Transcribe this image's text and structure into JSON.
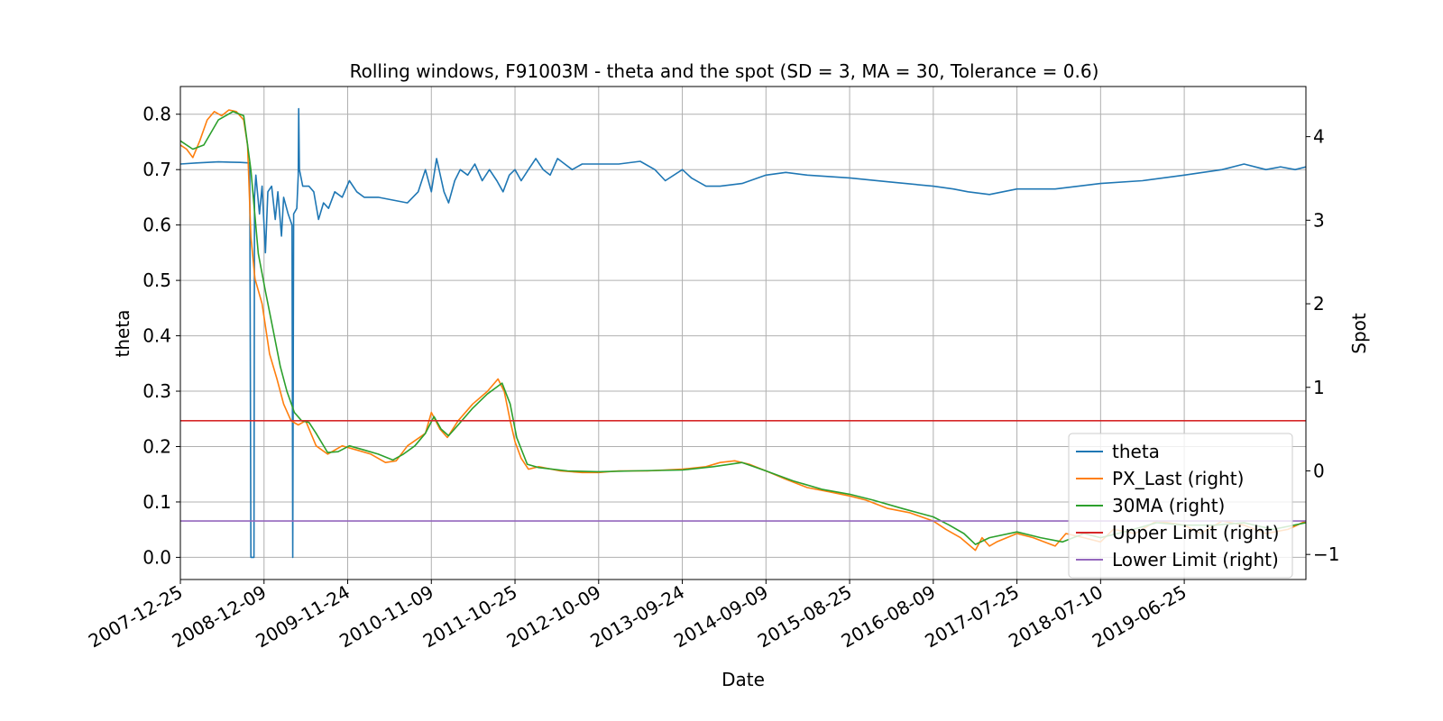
{
  "chart_data": {
    "type": "line",
    "title": "Rolling windows, F91003M - theta and the spot (SD = 3, MA = 30, Tolerance  = 0.6)",
    "xlabel": "Date",
    "ylabel": "theta",
    "y2label": "Spot",
    "xlim": [
      "2007-12-25",
      "2020-11-15"
    ],
    "ylim": [
      -0.04,
      0.85
    ],
    "y2lim": [
      -1.3,
      4.6
    ],
    "x_ticks": [
      "2007-12-25",
      "2008-12-09",
      "2009-11-24",
      "2010-11-09",
      "2011-10-25",
      "2012-10-09",
      "2013-09-24",
      "2014-09-09",
      "2015-08-25",
      "2016-08-09",
      "2017-07-25",
      "2018-07-10",
      "2019-06-25"
    ],
    "y_ticks": [
      "0.0",
      "0.1",
      "0.2",
      "0.3",
      "0.4",
      "0.5",
      "0.6",
      "0.7",
      "0.8"
    ],
    "y2_ticks": [
      "−1",
      "0",
      "1",
      "2",
      "3",
      "4"
    ],
    "y_tick_values": [
      0,
      0.1,
      0.2,
      0.3,
      0.4,
      0.5,
      0.6,
      0.7,
      0.8
    ],
    "y2_tick_values": [
      -1,
      0,
      1,
      2,
      3,
      4
    ],
    "grid": true,
    "legend_position": "lower-right",
    "series": [
      {
        "name": "theta",
        "axis": "left",
        "color": "#1f77b4",
        "points": [
          [
            "2007-12-25",
            0.71
          ],
          [
            "2008-03-01",
            0.712
          ],
          [
            "2008-06-01",
            0.714
          ],
          [
            "2008-09-01",
            0.713
          ],
          [
            "2008-10-10",
            0.712
          ],
          [
            "2008-10-15",
            0.0
          ],
          [
            "2008-10-28",
            0.0
          ],
          [
            "2008-10-30",
            0.65
          ],
          [
            "2008-11-05",
            0.69
          ],
          [
            "2008-11-20",
            0.62
          ],
          [
            "2008-12-01",
            0.67
          ],
          [
            "2008-12-15",
            0.55
          ],
          [
            "2008-12-25",
            0.66
          ],
          [
            "2009-01-10",
            0.67
          ],
          [
            "2009-01-25",
            0.61
          ],
          [
            "2009-02-05",
            0.66
          ],
          [
            "2009-02-20",
            0.58
          ],
          [
            "2009-03-01",
            0.65
          ],
          [
            "2009-03-20",
            0.62
          ],
          [
            "2009-04-05",
            0.6
          ],
          [
            "2009-04-08",
            0.0
          ],
          [
            "2009-04-12",
            0.62
          ],
          [
            "2009-04-25",
            0.63
          ],
          [
            "2009-05-01",
            0.69
          ],
          [
            "2009-05-03",
            0.81
          ],
          [
            "2009-05-06",
            0.7
          ],
          [
            "2009-05-20",
            0.67
          ],
          [
            "2009-06-15",
            0.67
          ],
          [
            "2009-07-05",
            0.66
          ],
          [
            "2009-07-25",
            0.61
          ],
          [
            "2009-08-15",
            0.64
          ],
          [
            "2009-09-05",
            0.63
          ],
          [
            "2009-10-01",
            0.66
          ],
          [
            "2009-11-01",
            0.65
          ],
          [
            "2009-12-01",
            0.68
          ],
          [
            "2010-01-01",
            0.66
          ],
          [
            "2010-02-01",
            0.65
          ],
          [
            "2010-04-01",
            0.65
          ],
          [
            "2010-06-01",
            0.645
          ],
          [
            "2010-08-01",
            0.64
          ],
          [
            "2010-09-15",
            0.66
          ],
          [
            "2010-10-15",
            0.7
          ],
          [
            "2010-11-09",
            0.66
          ],
          [
            "2010-12-01",
            0.72
          ],
          [
            "2011-01-01",
            0.66
          ],
          [
            "2011-01-20",
            0.64
          ],
          [
            "2011-02-15",
            0.68
          ],
          [
            "2011-03-10",
            0.7
          ],
          [
            "2011-04-10",
            0.69
          ],
          [
            "2011-05-10",
            0.71
          ],
          [
            "2011-06-10",
            0.68
          ],
          [
            "2011-07-10",
            0.7
          ],
          [
            "2011-08-10",
            0.68
          ],
          [
            "2011-09-05",
            0.66
          ],
          [
            "2011-10-01",
            0.69
          ],
          [
            "2011-10-25",
            0.7
          ],
          [
            "2011-11-20",
            0.68
          ],
          [
            "2011-12-20",
            0.7
          ],
          [
            "2012-01-20",
            0.72
          ],
          [
            "2012-02-20",
            0.7
          ],
          [
            "2012-03-20",
            0.69
          ],
          [
            "2012-04-20",
            0.72
          ],
          [
            "2012-05-20",
            0.71
          ],
          [
            "2012-06-20",
            0.7
          ],
          [
            "2012-08-01",
            0.71
          ],
          [
            "2012-10-09",
            0.71
          ],
          [
            "2013-01-01",
            0.71
          ],
          [
            "2013-04-01",
            0.715
          ],
          [
            "2013-06-01",
            0.7
          ],
          [
            "2013-07-15",
            0.68
          ],
          [
            "2013-09-24",
            0.7
          ],
          [
            "2013-11-01",
            0.685
          ],
          [
            "2014-01-01",
            0.67
          ],
          [
            "2014-03-01",
            0.67
          ],
          [
            "2014-06-01",
            0.675
          ],
          [
            "2014-09-09",
            0.69
          ],
          [
            "2014-12-01",
            0.695
          ],
          [
            "2015-03-01",
            0.69
          ],
          [
            "2015-08-25",
            0.685
          ],
          [
            "2016-02-01",
            0.678
          ],
          [
            "2016-08-09",
            0.67
          ],
          [
            "2016-11-01",
            0.665
          ],
          [
            "2017-01-01",
            0.66
          ],
          [
            "2017-04-01",
            0.655
          ],
          [
            "2017-07-25",
            0.665
          ],
          [
            "2018-01-01",
            0.665
          ],
          [
            "2018-07-10",
            0.675
          ],
          [
            "2019-01-01",
            0.68
          ],
          [
            "2019-06-25",
            0.69
          ],
          [
            "2019-12-01",
            0.7
          ],
          [
            "2020-03-01",
            0.71
          ],
          [
            "2020-06-01",
            0.7
          ],
          [
            "2020-08-01",
            0.705
          ],
          [
            "2020-10-01",
            0.7
          ],
          [
            "2020-11-15",
            0.705
          ]
        ]
      },
      {
        "name": "PX_Last (right)",
        "axis": "right",
        "color": "#ff7f0e",
        "points": [
          [
            "2007-12-25",
            3.9
          ],
          [
            "2008-01-20",
            3.85
          ],
          [
            "2008-02-15",
            3.75
          ],
          [
            "2008-03-15",
            3.95
          ],
          [
            "2008-04-15",
            4.2
          ],
          [
            "2008-05-15",
            4.3
          ],
          [
            "2008-06-15",
            4.25
          ],
          [
            "2008-07-15",
            4.32
          ],
          [
            "2008-08-15",
            4.3
          ],
          [
            "2008-09-15",
            4.2
          ],
          [
            "2008-10-01",
            3.9
          ],
          [
            "2008-10-15",
            2.8
          ],
          [
            "2008-11-01",
            2.3
          ],
          [
            "2008-12-01",
            2.0
          ],
          [
            "2009-01-01",
            1.4
          ],
          [
            "2009-02-01",
            1.1
          ],
          [
            "2009-03-01",
            0.8
          ],
          [
            "2009-04-01",
            0.6
          ],
          [
            "2009-05-01",
            0.55
          ],
          [
            "2009-06-01",
            0.6
          ],
          [
            "2009-07-15",
            0.3
          ],
          [
            "2009-09-01",
            0.2
          ],
          [
            "2009-11-01",
            0.3
          ],
          [
            "2010-01-01",
            0.25
          ],
          [
            "2010-03-01",
            0.2
          ],
          [
            "2010-05-01",
            0.1
          ],
          [
            "2010-06-15",
            0.12
          ],
          [
            "2010-08-01",
            0.3
          ],
          [
            "2010-10-15",
            0.45
          ],
          [
            "2010-11-09",
            0.7
          ],
          [
            "2010-12-15",
            0.5
          ],
          [
            "2011-01-15",
            0.4
          ],
          [
            "2011-03-01",
            0.6
          ],
          [
            "2011-05-01",
            0.8
          ],
          [
            "2011-07-01",
            0.95
          ],
          [
            "2011-08-15",
            1.1
          ],
          [
            "2011-09-10",
            0.95
          ],
          [
            "2011-10-05",
            0.6
          ],
          [
            "2011-10-25",
            0.35
          ],
          [
            "2011-11-20",
            0.15
          ],
          [
            "2011-12-20",
            0.02
          ],
          [
            "2012-02-01",
            0.05
          ],
          [
            "2012-05-01",
            0.0
          ],
          [
            "2012-08-01",
            -0.02
          ],
          [
            "2012-10-09",
            -0.02
          ],
          [
            "2013-01-01",
            0.0
          ],
          [
            "2013-05-01",
            0.0
          ],
          [
            "2013-09-24",
            0.02
          ],
          [
            "2014-01-01",
            0.05
          ],
          [
            "2014-03-01",
            0.1
          ],
          [
            "2014-05-01",
            0.12
          ],
          [
            "2014-07-01",
            0.08
          ],
          [
            "2014-09-09",
            0.0
          ],
          [
            "2014-12-01",
            -0.1
          ],
          [
            "2015-03-01",
            -0.2
          ],
          [
            "2015-06-01",
            -0.25
          ],
          [
            "2015-08-25",
            -0.3
          ],
          [
            "2015-11-01",
            -0.35
          ],
          [
            "2016-02-01",
            -0.45
          ],
          [
            "2016-05-01",
            -0.5
          ],
          [
            "2016-08-09",
            -0.6
          ],
          [
            "2016-10-01",
            -0.7
          ],
          [
            "2016-12-01",
            -0.8
          ],
          [
            "2017-02-01",
            -0.95
          ],
          [
            "2017-03-01",
            -0.8
          ],
          [
            "2017-04-01",
            -0.9
          ],
          [
            "2017-05-01",
            -0.85
          ],
          [
            "2017-07-25",
            -0.75
          ],
          [
            "2017-10-01",
            -0.8
          ],
          [
            "2018-01-01",
            -0.9
          ],
          [
            "2018-02-15",
            -0.75
          ],
          [
            "2018-05-01",
            -0.8
          ],
          [
            "2018-07-10",
            -0.85
          ],
          [
            "2018-09-01",
            -0.7
          ],
          [
            "2018-12-01",
            -0.75
          ],
          [
            "2019-03-01",
            -0.6
          ],
          [
            "2019-06-25",
            -0.65
          ],
          [
            "2019-09-01",
            -0.75
          ],
          [
            "2019-12-01",
            -0.6
          ],
          [
            "2020-03-01",
            -0.65
          ],
          [
            "2020-06-01",
            -0.75
          ],
          [
            "2020-09-01",
            -0.7
          ],
          [
            "2020-11-15",
            -0.6
          ]
        ]
      },
      {
        "name": "30MA (right)",
        "axis": "right",
        "color": "#2ca02c",
        "points": [
          [
            "2007-12-25",
            3.95
          ],
          [
            "2008-02-15",
            3.85
          ],
          [
            "2008-04-01",
            3.9
          ],
          [
            "2008-06-01",
            4.2
          ],
          [
            "2008-08-01",
            4.3
          ],
          [
            "2008-09-15",
            4.25
          ],
          [
            "2008-10-15",
            3.6
          ],
          [
            "2008-11-15",
            2.6
          ],
          [
            "2008-12-15",
            2.15
          ],
          [
            "2009-01-15",
            1.7
          ],
          [
            "2009-02-15",
            1.25
          ],
          [
            "2009-03-15",
            0.95
          ],
          [
            "2009-04-15",
            0.7
          ],
          [
            "2009-05-15",
            0.6
          ],
          [
            "2009-06-15",
            0.58
          ],
          [
            "2009-07-15",
            0.45
          ],
          [
            "2009-09-01",
            0.22
          ],
          [
            "2009-10-15",
            0.23
          ],
          [
            "2009-12-01",
            0.3
          ],
          [
            "2010-02-01",
            0.25
          ],
          [
            "2010-04-01",
            0.2
          ],
          [
            "2010-06-01",
            0.13
          ],
          [
            "2010-07-15",
            0.2
          ],
          [
            "2010-09-01",
            0.3
          ],
          [
            "2010-10-15",
            0.45
          ],
          [
            "2010-11-20",
            0.65
          ],
          [
            "2010-12-20",
            0.5
          ],
          [
            "2011-01-20",
            0.42
          ],
          [
            "2011-03-01",
            0.55
          ],
          [
            "2011-05-01",
            0.75
          ],
          [
            "2011-07-01",
            0.92
          ],
          [
            "2011-09-01",
            1.05
          ],
          [
            "2011-10-05",
            0.8
          ],
          [
            "2011-11-01",
            0.4
          ],
          [
            "2011-12-15",
            0.08
          ],
          [
            "2012-02-01",
            0.04
          ],
          [
            "2012-06-01",
            0.0
          ],
          [
            "2012-10-09",
            -0.01
          ],
          [
            "2013-03-01",
            0.0
          ],
          [
            "2013-09-24",
            0.01
          ],
          [
            "2014-02-01",
            0.05
          ],
          [
            "2014-06-01",
            0.1
          ],
          [
            "2014-09-09",
            0.0
          ],
          [
            "2015-01-01",
            -0.12
          ],
          [
            "2015-05-01",
            -0.22
          ],
          [
            "2015-08-25",
            -0.28
          ],
          [
            "2015-12-01",
            -0.35
          ],
          [
            "2016-04-01",
            -0.45
          ],
          [
            "2016-08-09",
            -0.55
          ],
          [
            "2016-10-15",
            -0.65
          ],
          [
            "2016-12-15",
            -0.75
          ],
          [
            "2017-02-01",
            -0.88
          ],
          [
            "2017-04-01",
            -0.8
          ],
          [
            "2017-07-25",
            -0.73
          ],
          [
            "2017-11-01",
            -0.8
          ],
          [
            "2018-02-01",
            -0.85
          ],
          [
            "2018-05-01",
            -0.75
          ],
          [
            "2018-07-10",
            -0.8
          ],
          [
            "2018-11-01",
            -0.72
          ],
          [
            "2019-03-01",
            -0.62
          ],
          [
            "2019-06-25",
            -0.65
          ],
          [
            "2019-11-01",
            -0.65
          ],
          [
            "2020-03-01",
            -0.62
          ],
          [
            "2020-07-01",
            -0.7
          ],
          [
            "2020-11-15",
            -0.62
          ]
        ]
      },
      {
        "name": "Upper Limit (right)",
        "axis": "right",
        "color": "#d62728",
        "points": [
          [
            "2007-12-25",
            0.6
          ],
          [
            "2020-11-15",
            0.6
          ]
        ]
      },
      {
        "name": "Lower Limit (right)",
        "axis": "right",
        "color": "#9467bd",
        "points": [
          [
            "2007-12-25",
            -0.6
          ],
          [
            "2020-11-15",
            -0.6
          ]
        ]
      }
    ]
  }
}
